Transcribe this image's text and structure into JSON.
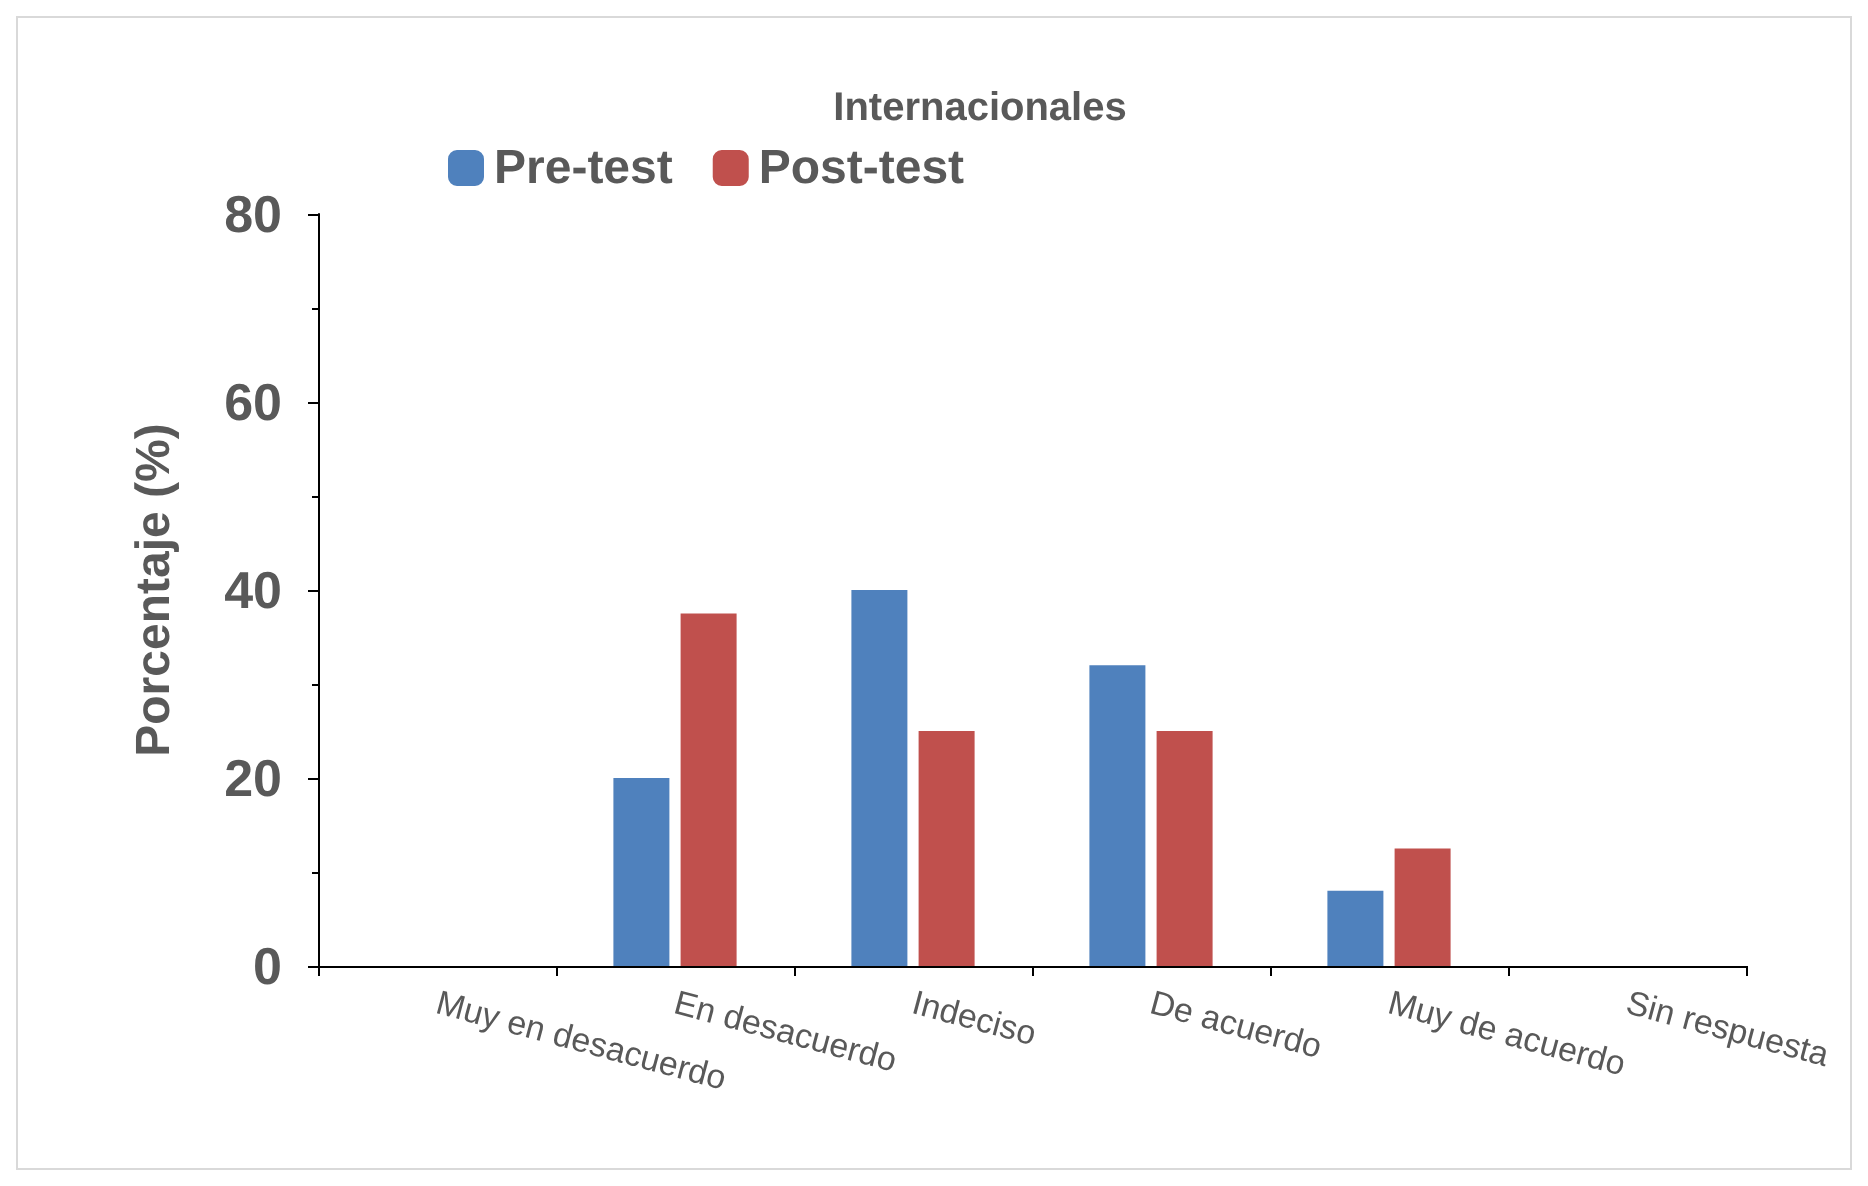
{
  "chart_data": {
    "type": "bar",
    "title": "Internacionales",
    "ylabel": "Porcentaje (%)",
    "categories": [
      "Muy en desacuerdo",
      "En desacuerdo",
      "Indeciso",
      "De acuerdo",
      "Muy de acuerdo",
      "Sin respuesta"
    ],
    "series": [
      {
        "name": "Pre-test",
        "color": "#4f81bd",
        "values": [
          0,
          20,
          40,
          32,
          8,
          0
        ]
      },
      {
        "name": "Post-test",
        "color": "#c0504d",
        "values": [
          0,
          37.5,
          25,
          25,
          12.5,
          0
        ]
      }
    ],
    "ylim": [
      0,
      80
    ],
    "yticks": [
      0,
      20,
      40,
      60,
      80
    ],
    "grid": false,
    "legend": "top left"
  }
}
